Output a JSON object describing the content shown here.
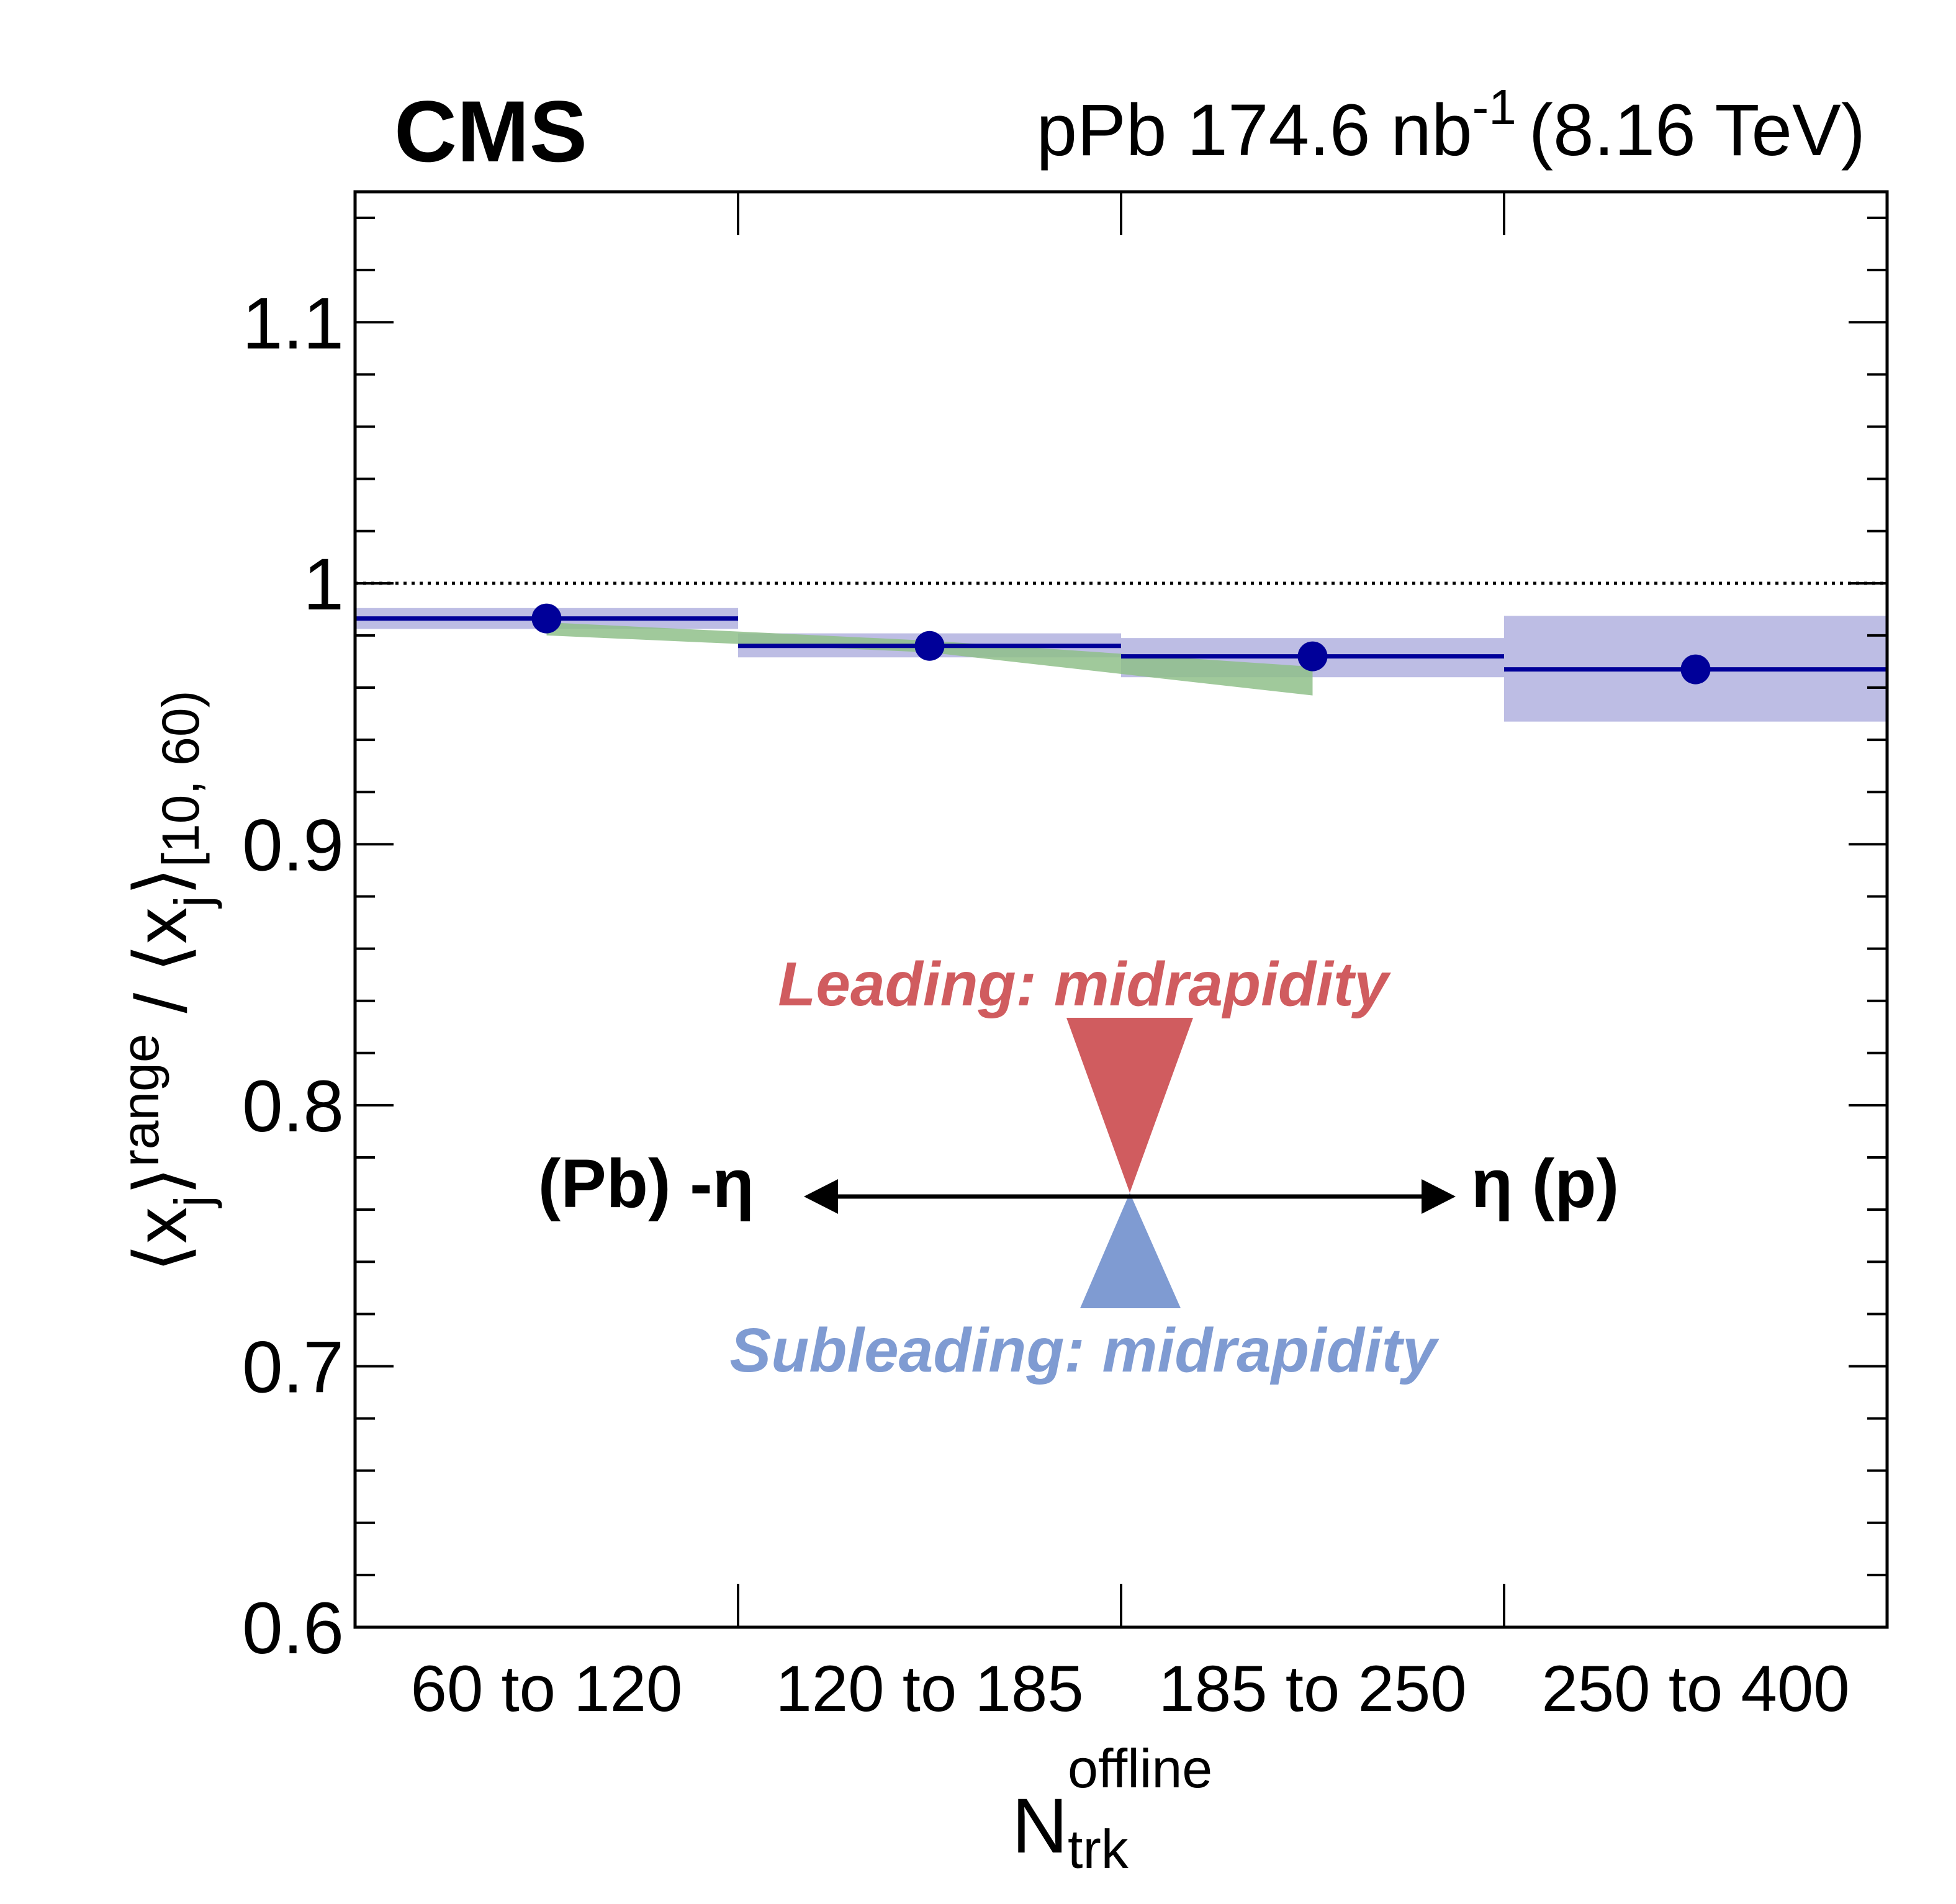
{
  "chart_data": {
    "type": "scatter",
    "experiment": "CMS",
    "luminosity_label": "pPb 174.6 nb",
    "luminosity_sup": "-1",
    "energy_label": "(8.16 TeV)",
    "xlabel": {
      "main": "N",
      "sup": "offline",
      "sub": "trk"
    },
    "ylabel": {
      "p1": "⟨x",
      "sub1": "j",
      "p2": "⟩",
      "sub2": "range",
      "p3": " / ⟨x",
      "sub3": "j",
      "p4": "⟩",
      "sub4": "[10, 60)"
    },
    "categories": [
      "60 to 120",
      "120 to 185",
      "185 to 250",
      "250 to 400"
    ],
    "ylim": [
      0.6,
      1.15
    ],
    "yticks": [
      "0.6",
      "0.7",
      "0.8",
      "0.9",
      "1",
      "1.1"
    ],
    "reference_line": 1.0,
    "series": [
      {
        "values": [
          0.9865,
          0.976,
          0.972,
          0.967
        ],
        "syst_low": [
          0.9825,
          0.9716,
          0.964,
          0.947
        ],
        "syst_high": [
          0.9905,
          0.9808,
          0.979,
          0.9875
        ],
        "color": "#000099",
        "band_color": "#bdbde4"
      }
    ],
    "green_band": {
      "categories_index": [
        0,
        1,
        2
      ],
      "low": [
        0.98,
        0.9735,
        0.957
      ],
      "high": [
        0.985,
        0.978,
        0.968
      ],
      "color": "#8fbf8a"
    },
    "annotation": {
      "leading": "Leading: midrapidity",
      "subleading": "Subleading: midrapidity",
      "left": "(Pb) -η",
      "right": "η (p)",
      "leading_color": "#d05c5f",
      "subleading_color": "#7f9bd2"
    }
  }
}
